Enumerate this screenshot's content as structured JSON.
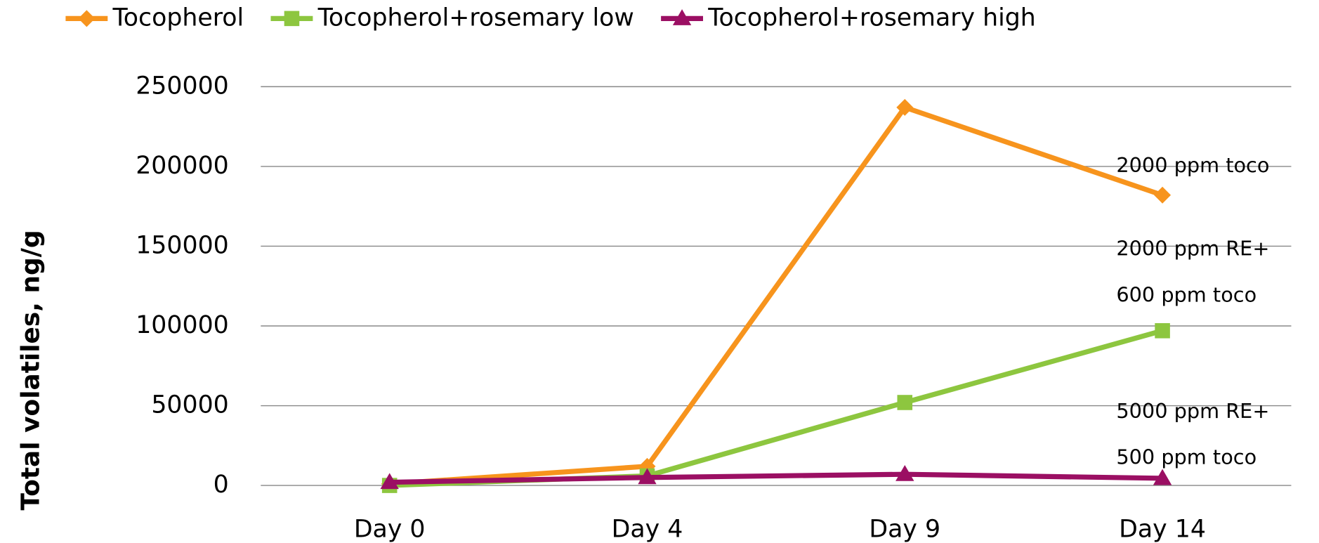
{
  "chart_data": {
    "type": "line",
    "ylabel": "Total volatiles, ng/g",
    "categories": [
      "Day 0",
      "Day 4",
      "Day 9",
      "Day 14"
    ],
    "series": [
      {
        "name": "Tocopherol",
        "color": "#F7941D",
        "marker": "diamond",
        "values": [
          1000,
          12000,
          237000,
          182000
        ]
      },
      {
        "name": "Tocopherol+rosemary low",
        "color": "#8DC63F",
        "marker": "square",
        "values": [
          0,
          6000,
          52000,
          97000
        ]
      },
      {
        "name": "Tocopherol+rosemary high",
        "color": "#9B0F63",
        "marker": "triangle",
        "values": [
          2000,
          5000,
          7000,
          4500
        ]
      }
    ],
    "annotations": [
      "2000 ppm toco",
      "2000 ppm RE+",
      "600 ppm toco",
      "5000 ppm RE+",
      "500 ppm toco"
    ],
    "ylim": [
      0,
      250000
    ],
    "yticks": [
      0,
      50000,
      100000,
      150000,
      200000,
      250000
    ],
    "grid": true,
    "legend": "top"
  }
}
